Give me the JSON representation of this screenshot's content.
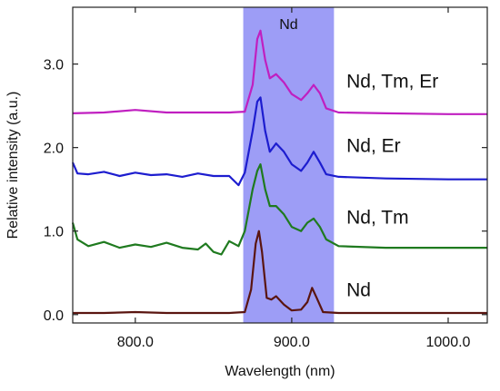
{
  "chart_data": {
    "type": "line",
    "title": "",
    "xlabel": "Wavelength (nm)",
    "ylabel": "Relative intensity (a.u.)",
    "xlim": [
      760,
      1025
    ],
    "ylim": [
      -0.1,
      3.68
    ],
    "x_ticks": [
      800,
      900,
      1000
    ],
    "x_tick_labels": [
      "800.0",
      "900.0",
      "1000.0"
    ],
    "y_ticks": [
      0,
      1,
      2,
      3
    ],
    "y_tick_labels": [
      "0.0",
      "1.0",
      "2.0",
      "3.0"
    ],
    "grid": false,
    "legend": "none",
    "highlight_band": {
      "label": "Nd",
      "x_range": [
        869,
        927
      ],
      "color": "#8c8cf5"
    },
    "series": [
      {
        "name": "Nd, Tm, Er",
        "color": "#c01fc0",
        "points": [
          [
            760,
            2.41
          ],
          [
            780,
            2.42
          ],
          [
            800,
            2.45
          ],
          [
            820,
            2.42
          ],
          [
            840,
            2.42
          ],
          [
            860,
            2.42
          ],
          [
            870,
            2.43
          ],
          [
            875,
            2.75
          ],
          [
            878,
            3.3
          ],
          [
            880,
            3.4
          ],
          [
            883,
            3.05
          ],
          [
            886,
            2.83
          ],
          [
            890,
            2.88
          ],
          [
            895,
            2.78
          ],
          [
            900,
            2.64
          ],
          [
            906,
            2.57
          ],
          [
            910,
            2.65
          ],
          [
            914,
            2.75
          ],
          [
            918,
            2.65
          ],
          [
            922,
            2.47
          ],
          [
            930,
            2.42
          ],
          [
            960,
            2.41
          ],
          [
            1000,
            2.4
          ],
          [
            1025,
            2.4
          ]
        ]
      },
      {
        "name": "Nd, Er",
        "color": "#1d1dcf",
        "points": [
          [
            760,
            1.82
          ],
          [
            763,
            1.69
          ],
          [
            770,
            1.68
          ],
          [
            780,
            1.71
          ],
          [
            790,
            1.66
          ],
          [
            800,
            1.7
          ],
          [
            810,
            1.67
          ],
          [
            820,
            1.68
          ],
          [
            830,
            1.65
          ],
          [
            840,
            1.69
          ],
          [
            850,
            1.66
          ],
          [
            860,
            1.66
          ],
          [
            866,
            1.55
          ],
          [
            870,
            1.7
          ],
          [
            875,
            2.2
          ],
          [
            878,
            2.55
          ],
          [
            880,
            2.6
          ],
          [
            883,
            2.2
          ],
          [
            886,
            1.95
          ],
          [
            890,
            2.05
          ],
          [
            895,
            1.95
          ],
          [
            900,
            1.8
          ],
          [
            906,
            1.72
          ],
          [
            910,
            1.82
          ],
          [
            914,
            1.95
          ],
          [
            918,
            1.82
          ],
          [
            922,
            1.68
          ],
          [
            930,
            1.65
          ],
          [
            960,
            1.63
          ],
          [
            1000,
            1.62
          ],
          [
            1025,
            1.62
          ]
        ]
      },
      {
        "name": "Nd, Tm",
        "color": "#1f7a1f",
        "points": [
          [
            760,
            1.1
          ],
          [
            763,
            0.9
          ],
          [
            770,
            0.82
          ],
          [
            780,
            0.87
          ],
          [
            790,
            0.8
          ],
          [
            800,
            0.84
          ],
          [
            810,
            0.81
          ],
          [
            820,
            0.86
          ],
          [
            830,
            0.8
          ],
          [
            840,
            0.78
          ],
          [
            845,
            0.85
          ],
          [
            850,
            0.75
          ],
          [
            855,
            0.72
          ],
          [
            860,
            0.88
          ],
          [
            866,
            0.82
          ],
          [
            870,
            1.0
          ],
          [
            875,
            1.5
          ],
          [
            878,
            1.72
          ],
          [
            880,
            1.8
          ],
          [
            883,
            1.5
          ],
          [
            886,
            1.3
          ],
          [
            890,
            1.3
          ],
          [
            895,
            1.2
          ],
          [
            900,
            1.05
          ],
          [
            906,
            1.0
          ],
          [
            910,
            1.1
          ],
          [
            914,
            1.15
          ],
          [
            918,
            1.05
          ],
          [
            922,
            0.9
          ],
          [
            930,
            0.82
          ],
          [
            960,
            0.8
          ],
          [
            1000,
            0.8
          ],
          [
            1025,
            0.8
          ]
        ]
      },
      {
        "name": "Nd",
        "color": "#5a1510",
        "points": [
          [
            760,
            0.02
          ],
          [
            780,
            0.02
          ],
          [
            800,
            0.03
          ],
          [
            820,
            0.02
          ],
          [
            840,
            0.02
          ],
          [
            860,
            0.02
          ],
          [
            870,
            0.03
          ],
          [
            874,
            0.3
          ],
          [
            877,
            0.85
          ],
          [
            879,
            1.0
          ],
          [
            881,
            0.75
          ],
          [
            884,
            0.2
          ],
          [
            887,
            0.18
          ],
          [
            890,
            0.22
          ],
          [
            895,
            0.12
          ],
          [
            900,
            0.05
          ],
          [
            906,
            0.06
          ],
          [
            910,
            0.15
          ],
          [
            913,
            0.32
          ],
          [
            916,
            0.2
          ],
          [
            920,
            0.03
          ],
          [
            930,
            0.02
          ],
          [
            960,
            0.02
          ],
          [
            1000,
            0.02
          ],
          [
            1025,
            0.02
          ]
        ]
      }
    ],
    "annotations": [
      {
        "text": "Nd, Tm, Er",
        "x": 935,
        "y": 2.72
      },
      {
        "text": "Nd, Er",
        "x": 935,
        "y": 1.95
      },
      {
        "text": "Nd, Tm",
        "x": 935,
        "y": 1.09
      },
      {
        "text": "Nd",
        "x": 935,
        "y": 0.22
      }
    ]
  }
}
